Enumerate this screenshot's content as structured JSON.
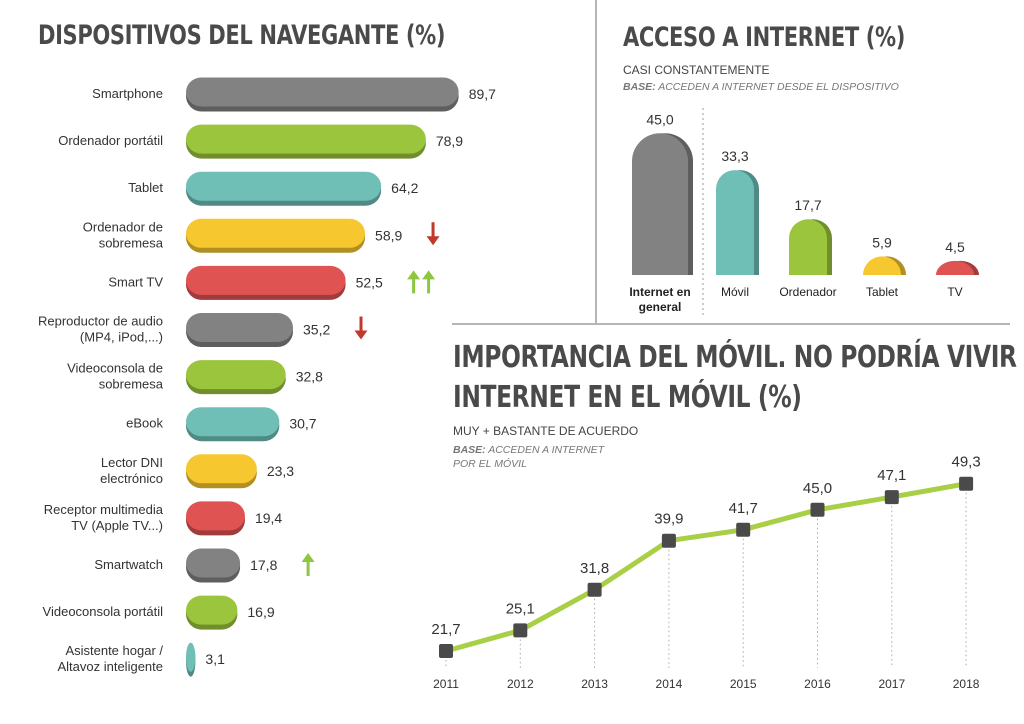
{
  "left": {
    "title": "DISPOSITIVOS DEL NAVEGANTE (%)"
  },
  "top_right": {
    "title": "ACCESO A INTERNET (%)",
    "subtitle": "CASI CONSTANTEMENTE",
    "base_label": "BASE:",
    "base_text": "ACCEDEN A INTERNET DESDE EL DISPOSITIVO"
  },
  "bottom_right": {
    "title_line1": "IMPORTANCIA DEL MÓVIL. NO PODRÍA VIVIR SIN",
    "title_line2": "INTERNET EN EL MÓVIL (%)",
    "subtitle": "MUY + BASTANTE DE ACUERDO",
    "base_label": "BASE:",
    "base_text_line1": "ACCEDEN A INTERNET",
    "base_text_line2": "POR EL MÓVIL"
  },
  "colors": {
    "gray": "#828282",
    "green": "#9bc53d",
    "teal": "#6fbfb7",
    "yellow": "#f7c72f",
    "red": "#e05353",
    "arrow_red": "#c0392b",
    "arrow_green": "#8dc63f",
    "line": "#a8cf45",
    "marker": "#4a4a4a"
  },
  "chart_data": [
    {
      "type": "bar",
      "orientation": "horizontal",
      "title": "DISPOSITIVOS DEL NAVEGANTE (%)",
      "categories": [
        [
          "Smartphone"
        ],
        [
          "Ordenador portátil"
        ],
        [
          "Tablet"
        ],
        [
          "Ordenador de",
          "sobremesa"
        ],
        [
          "Smart TV"
        ],
        [
          "Reproductor de audio",
          "(MP4, iPod,...)"
        ],
        [
          "Videoconsola de",
          "sobremesa"
        ],
        [
          "eBook"
        ],
        [
          "Lector DNI",
          "electrónico"
        ],
        [
          "Receptor multimedia",
          "TV (Apple TV...)"
        ],
        [
          "Smartwatch"
        ],
        [
          "Videoconsola portátil"
        ],
        [
          "Asistente hogar /",
          "Altavoz inteligente"
        ]
      ],
      "values": [
        89.7,
        78.9,
        64.2,
        58.9,
        52.5,
        35.2,
        32.8,
        30.7,
        23.3,
        19.4,
        17.8,
        16.9,
        3.1
      ],
      "labels": [
        "89,7",
        "78,9",
        "64,2",
        "58,9",
        "52,5",
        "35,2",
        "32,8",
        "30,7",
        "23,3",
        "19,4",
        "17,8",
        "16,9",
        "3,1"
      ],
      "bar_colors": [
        "gray",
        "green",
        "teal",
        "yellow",
        "red",
        "gray",
        "green",
        "teal",
        "yellow",
        "red",
        "gray",
        "green",
        "teal"
      ],
      "trend_arrows": [
        "",
        "",
        "",
        "down",
        "double-up",
        "down",
        "",
        "",
        "",
        "",
        "up",
        "",
        ""
      ]
    },
    {
      "type": "bar",
      "orientation": "vertical",
      "title": "ACCESO A INTERNET (%)",
      "categories": [
        [
          "Internet en",
          "general"
        ],
        [
          "Móvil"
        ],
        [
          "Ordenador"
        ],
        [
          "Tablet"
        ],
        [
          "TV"
        ]
      ],
      "values": [
        45.0,
        33.3,
        17.7,
        5.9,
        4.5
      ],
      "labels": [
        "45,0",
        "33,3",
        "17,7",
        "5,9",
        "4,5"
      ],
      "bar_colors": [
        "gray",
        "teal",
        "green",
        "yellow",
        "red"
      ]
    },
    {
      "type": "line",
      "title": "IMPORTANCIA DEL MÓVIL. NO PODRÍA VIVIR SIN INTERNET EN EL MÓVIL (%)",
      "x": [
        "2011",
        "2012",
        "2013",
        "2014",
        "2015",
        "2016",
        "2017",
        "2018"
      ],
      "values": [
        21.7,
        25.1,
        31.8,
        39.9,
        41.7,
        45.0,
        47.1,
        49.3
      ],
      "labels": [
        "21,7",
        "25,1",
        "31,8",
        "39,9",
        "41,7",
        "45,0",
        "47,1",
        "49,3"
      ]
    }
  ]
}
